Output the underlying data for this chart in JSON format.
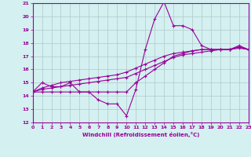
{
  "title": "",
  "xlabel": "Windchill (Refroidissement éolien,°C)",
  "x": [
    0,
    1,
    2,
    3,
    4,
    5,
    6,
    7,
    8,
    9,
    10,
    11,
    12,
    13,
    14,
    15,
    16,
    17,
    18,
    19,
    20,
    21,
    22,
    23
  ],
  "line1": [
    14.3,
    15.0,
    14.7,
    14.7,
    15.0,
    14.3,
    14.3,
    13.7,
    13.4,
    13.4,
    12.5,
    14.5,
    17.5,
    19.8,
    21.1,
    19.3,
    19.3,
    19.0,
    17.8,
    17.5,
    17.5,
    17.5,
    17.8,
    17.5
  ],
  "line2": [
    14.3,
    14.3,
    14.3,
    14.3,
    14.3,
    14.3,
    14.3,
    14.3,
    14.3,
    14.3,
    14.3,
    15.0,
    15.5,
    16.0,
    16.5,
    17.0,
    17.2,
    17.4,
    17.5,
    17.5,
    17.5,
    17.5,
    17.7,
    17.5
  ],
  "line3": [
    14.3,
    14.5,
    14.6,
    14.7,
    14.8,
    14.9,
    15.0,
    15.1,
    15.2,
    15.3,
    15.4,
    15.7,
    16.0,
    16.3,
    16.6,
    16.9,
    17.1,
    17.2,
    17.3,
    17.4,
    17.5,
    17.5,
    17.6,
    17.5
  ],
  "line4": [
    14.3,
    14.6,
    14.8,
    15.0,
    15.1,
    15.2,
    15.3,
    15.4,
    15.5,
    15.6,
    15.8,
    16.1,
    16.4,
    16.7,
    17.0,
    17.2,
    17.3,
    17.4,
    17.5,
    17.5,
    17.5,
    17.5,
    17.7,
    17.5
  ],
  "color": "#990099",
  "bg_color": "#d4f0f0",
  "grid_color": "#b0c8c8",
  "ylim": [
    12,
    21
  ],
  "xlim": [
    0,
    23
  ],
  "yticks": [
    12,
    13,
    14,
    15,
    16,
    17,
    18,
    19,
    20,
    21
  ],
  "xticks": [
    0,
    1,
    2,
    3,
    4,
    5,
    6,
    7,
    8,
    9,
    10,
    11,
    12,
    13,
    14,
    15,
    16,
    17,
    18,
    19,
    20,
    21,
    22,
    23
  ]
}
